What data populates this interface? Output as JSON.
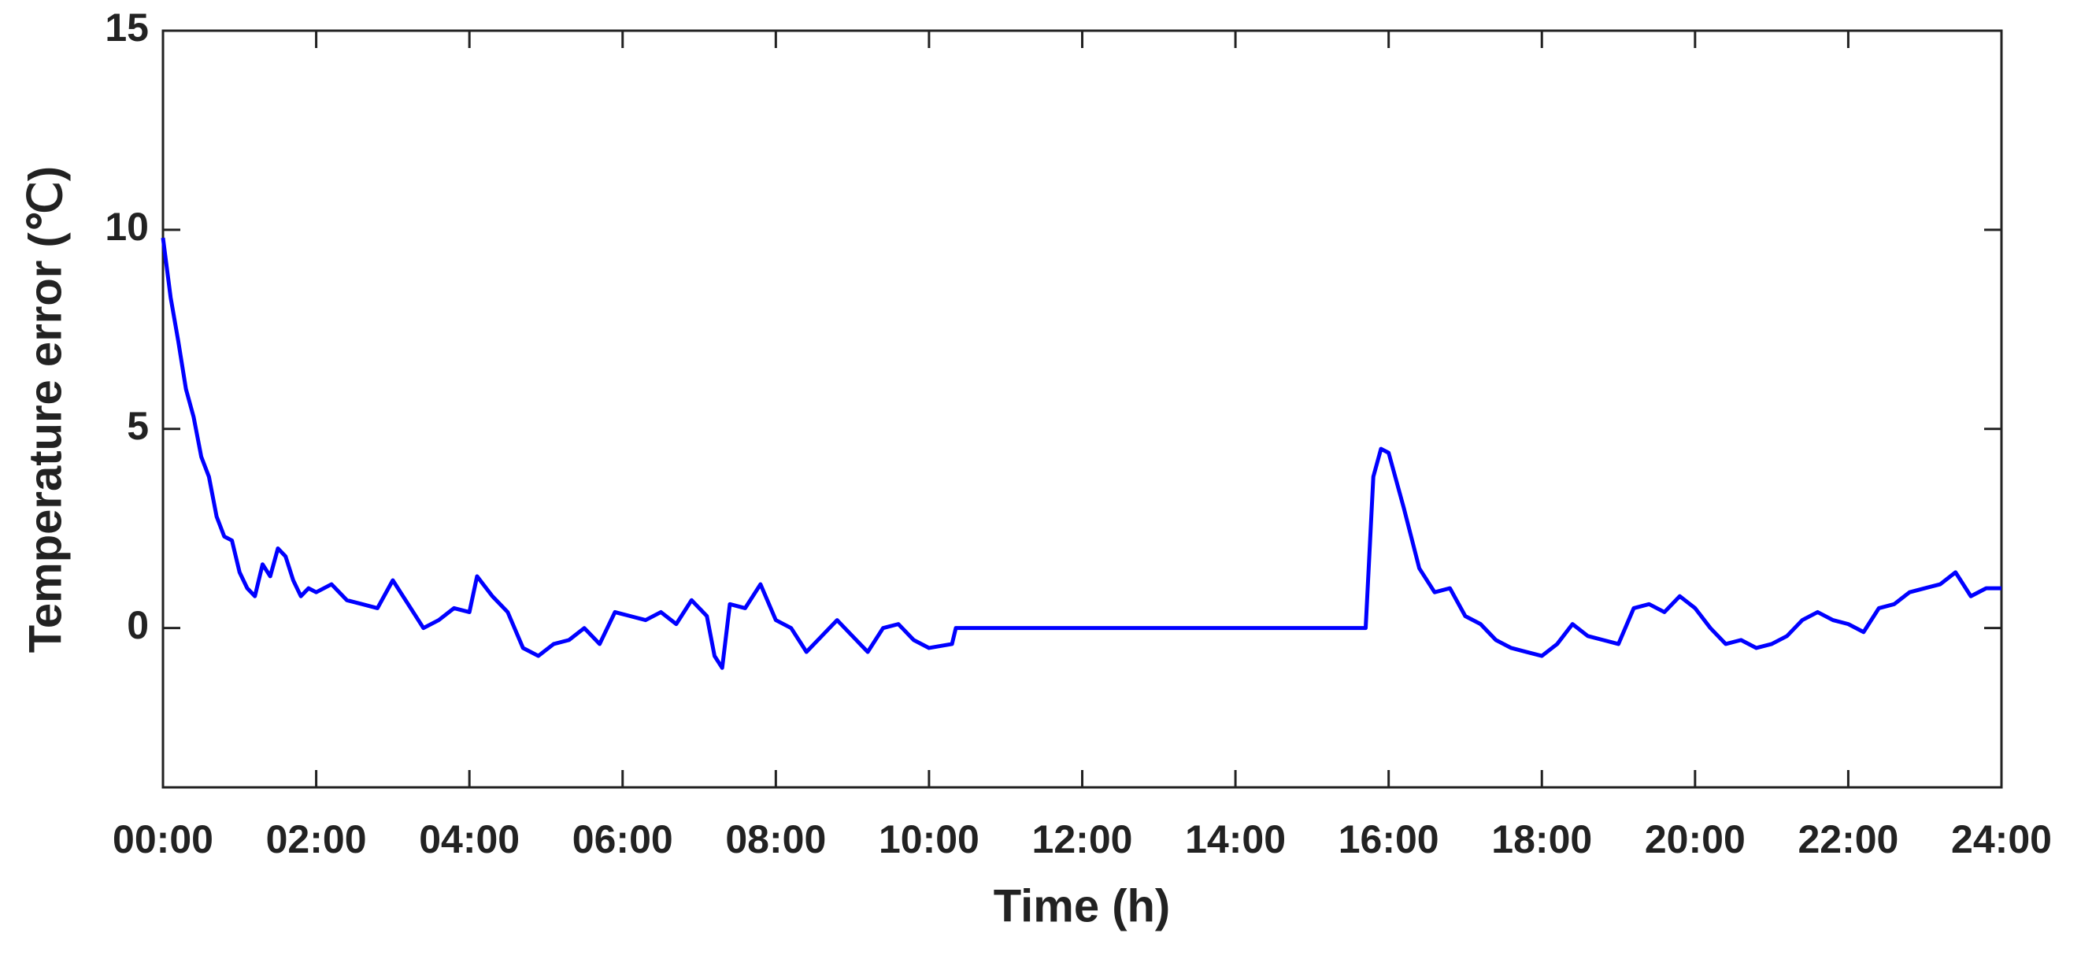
{
  "chart_data": {
    "type": "line",
    "xlabel": "Time (h)",
    "ylabel": "Temperature error (℃)",
    "xlim": [
      0,
      24
    ],
    "ylim": [
      -4,
      15
    ],
    "xticks": [
      {
        "value": 0,
        "label": "00:00"
      },
      {
        "value": 2,
        "label": "02:00"
      },
      {
        "value": 4,
        "label": "04:00"
      },
      {
        "value": 6,
        "label": "06:00"
      },
      {
        "value": 8,
        "label": "08:00"
      },
      {
        "value": 10,
        "label": "10:00"
      },
      {
        "value": 12,
        "label": "12:00"
      },
      {
        "value": 14,
        "label": "14:00"
      },
      {
        "value": 16,
        "label": "16:00"
      },
      {
        "value": 18,
        "label": "18:00"
      },
      {
        "value": 20,
        "label": "20:00"
      },
      {
        "value": 22,
        "label": "22:00"
      },
      {
        "value": 24,
        "label": "24:00"
      }
    ],
    "yticks": [
      0,
      5,
      10,
      15
    ],
    "series": [
      {
        "color": "#0000ff",
        "x": [
          0,
          0.1,
          0.2,
          0.3,
          0.4,
          0.5,
          0.6,
          0.7,
          0.8,
          0.9,
          1.0,
          1.1,
          1.2,
          1.3,
          1.4,
          1.5,
          1.6,
          1.7,
          1.8,
          1.9,
          2.0,
          2.2,
          2.4,
          2.6,
          2.8,
          3.0,
          3.2,
          3.4,
          3.6,
          3.8,
          4.0,
          4.1,
          4.3,
          4.5,
          4.7,
          4.9,
          5.1,
          5.3,
          5.5,
          5.7,
          5.9,
          6.1,
          6.3,
          6.5,
          6.7,
          6.9,
          7.1,
          7.2,
          7.3,
          7.4,
          7.6,
          7.8,
          8.0,
          8.2,
          8.4,
          8.6,
          8.8,
          9.0,
          9.2,
          9.4,
          9.6,
          9.8,
          10.0,
          10.3,
          10.35,
          15.7,
          15.8,
          15.9,
          16.0,
          16.2,
          16.4,
          16.6,
          16.8,
          17.0,
          17.2,
          17.4,
          17.6,
          17.8,
          18.0,
          18.2,
          18.4,
          18.6,
          18.8,
          19.0,
          19.2,
          19.4,
          19.6,
          19.8,
          20.0,
          20.2,
          20.4,
          20.6,
          20.8,
          21.0,
          21.2,
          21.4,
          21.6,
          21.8,
          22.0,
          22.2,
          22.4,
          22.6,
          22.8,
          23.0,
          23.2,
          23.4,
          23.6,
          23.8,
          24.0
        ],
        "values": [
          9.8,
          8.3,
          7.2,
          6.0,
          5.3,
          4.3,
          3.8,
          2.8,
          2.3,
          2.2,
          1.4,
          1.0,
          0.8,
          1.6,
          1.3,
          2.0,
          1.8,
          1.2,
          0.8,
          1.0,
          0.9,
          1.1,
          0.7,
          0.6,
          0.5,
          1.2,
          0.6,
          0.0,
          0.2,
          0.5,
          0.4,
          1.3,
          0.8,
          0.4,
          -0.5,
          -0.7,
          -0.4,
          -0.3,
          0.0,
          -0.4,
          0.4,
          0.3,
          0.2,
          0.4,
          0.1,
          0.7,
          0.3,
          -0.7,
          -1.0,
          0.6,
          0.5,
          1.1,
          0.2,
          0.0,
          -0.6,
          -0.2,
          0.2,
          -0.2,
          -0.6,
          0.0,
          0.1,
          -0.3,
          -0.5,
          -0.4,
          0.0,
          0.0,
          3.8,
          4.5,
          4.4,
          3.0,
          1.5,
          0.9,
          1.0,
          0.3,
          0.1,
          -0.3,
          -0.5,
          -0.6,
          -0.7,
          -0.4,
          0.1,
          -0.2,
          -0.3,
          -0.4,
          0.5,
          0.6,
          0.4,
          0.8,
          0.5,
          0.0,
          -0.4,
          -0.3,
          -0.5,
          -0.4,
          -0.2,
          0.2,
          0.4,
          0.2,
          0.1,
          -0.1,
          0.5,
          0.6,
          0.9,
          1.0,
          1.1,
          1.4,
          0.8,
          1.0,
          1.0
        ]
      }
    ]
  }
}
